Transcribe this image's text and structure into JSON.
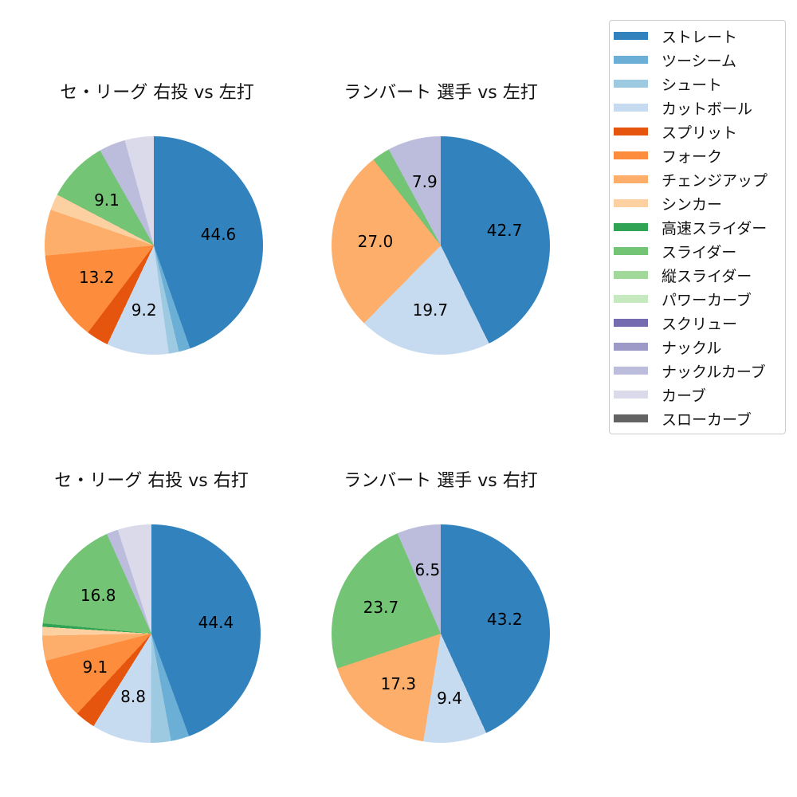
{
  "figure": {
    "background": "#ffffff"
  },
  "legend": {
    "position": "upper-right",
    "items": [
      {
        "label": "ストレート",
        "color": "#3182bd"
      },
      {
        "label": "ツーシーム",
        "color": "#6baed6"
      },
      {
        "label": "シュート",
        "color": "#9ecae1"
      },
      {
        "label": "カットボール",
        "color": "#c6dbef"
      },
      {
        "label": "スプリット",
        "color": "#e6550d"
      },
      {
        "label": "フォーク",
        "color": "#fd8d3c"
      },
      {
        "label": "チェンジアップ",
        "color": "#fdae6b"
      },
      {
        "label": "シンカー",
        "color": "#fdd0a2"
      },
      {
        "label": "高速スライダー",
        "color": "#31a354"
      },
      {
        "label": "スライダー",
        "color": "#74c476"
      },
      {
        "label": "縦スライダー",
        "color": "#a1d99b"
      },
      {
        "label": "パワーカーブ",
        "color": "#c7e9c0"
      },
      {
        "label": "スクリュー",
        "color": "#756bb1"
      },
      {
        "label": "ナックル",
        "color": "#9e9ac8"
      },
      {
        "label": "ナックルカーブ",
        "color": "#bcbddc"
      },
      {
        "label": "カーブ",
        "color": "#dadaeb"
      },
      {
        "label": "スローカーブ",
        "color": "#636363"
      }
    ]
  },
  "chart_data": [
    {
      "type": "pie",
      "title": "セ・リーグ 右投 vs 左打",
      "start_angle_deg": 0,
      "direction": "clockwise",
      "slices": [
        {
          "pitch": "ストレート",
          "value": 44.6,
          "display": "44.6"
        },
        {
          "pitch": "ツーシーム",
          "value": 1.7,
          "display": ""
        },
        {
          "pitch": "シュート",
          "value": 1.5,
          "display": ""
        },
        {
          "pitch": "カットボール",
          "value": 9.2,
          "display": "9.2"
        },
        {
          "pitch": "スプリット",
          "value": 3.3,
          "display": ""
        },
        {
          "pitch": "フォーク",
          "value": 13.2,
          "display": "13.2"
        },
        {
          "pitch": "チェンジアップ",
          "value": 6.8,
          "display": ""
        },
        {
          "pitch": "シンカー",
          "value": 2.4,
          "display": ""
        },
        {
          "pitch": "スライダー",
          "value": 9.1,
          "display": "9.1"
        },
        {
          "pitch": "ナックルカーブ",
          "value": 3.9,
          "display": ""
        },
        {
          "pitch": "カーブ",
          "value": 4.3,
          "display": ""
        }
      ]
    },
    {
      "type": "pie",
      "title": "ランバート 選手 vs 左打",
      "start_angle_deg": 0,
      "direction": "clockwise",
      "slices": [
        {
          "pitch": "ストレート",
          "value": 42.7,
          "display": "42.7"
        },
        {
          "pitch": "カットボール",
          "value": 19.7,
          "display": "19.7"
        },
        {
          "pitch": "チェンジアップ",
          "value": 27.0,
          "display": "27.0"
        },
        {
          "pitch": "スライダー",
          "value": 2.7,
          "display": ""
        },
        {
          "pitch": "ナックルカーブ",
          "value": 7.9,
          "display": "7.9"
        }
      ]
    },
    {
      "type": "pie",
      "title": "セ・リーグ 右投 vs 右打",
      "start_angle_deg": 0,
      "direction": "clockwise",
      "slices": [
        {
          "pitch": "ストレート",
          "value": 44.4,
          "display": "44.4"
        },
        {
          "pitch": "ツーシーム",
          "value": 2.7,
          "display": ""
        },
        {
          "pitch": "シュート",
          "value": 3.0,
          "display": ""
        },
        {
          "pitch": "カットボール",
          "value": 8.8,
          "display": "8.8"
        },
        {
          "pitch": "スプリット",
          "value": 3.0,
          "display": ""
        },
        {
          "pitch": "フォーク",
          "value": 9.1,
          "display": "9.1"
        },
        {
          "pitch": "チェンジアップ",
          "value": 3.7,
          "display": ""
        },
        {
          "pitch": "シンカー",
          "value": 1.3,
          "display": ""
        },
        {
          "pitch": "高速スライダー",
          "value": 0.5,
          "display": ""
        },
        {
          "pitch": "スライダー",
          "value": 16.8,
          "display": "16.8"
        },
        {
          "pitch": "ナックルカーブ",
          "value": 1.7,
          "display": ""
        },
        {
          "pitch": "カーブ",
          "value": 5.0,
          "display": ""
        }
      ]
    },
    {
      "type": "pie",
      "title": "ランバート 選手 vs 右打",
      "start_angle_deg": 0,
      "direction": "clockwise",
      "slices": [
        {
          "pitch": "ストレート",
          "value": 43.2,
          "display": "43.2"
        },
        {
          "pitch": "カットボール",
          "value": 9.4,
          "display": "9.4"
        },
        {
          "pitch": "チェンジアップ",
          "value": 17.3,
          "display": "17.3"
        },
        {
          "pitch": "スライダー",
          "value": 23.7,
          "display": "23.7"
        },
        {
          "pitch": "ナックルカーブ",
          "value": 6.5,
          "display": "6.5"
        }
      ]
    }
  ]
}
